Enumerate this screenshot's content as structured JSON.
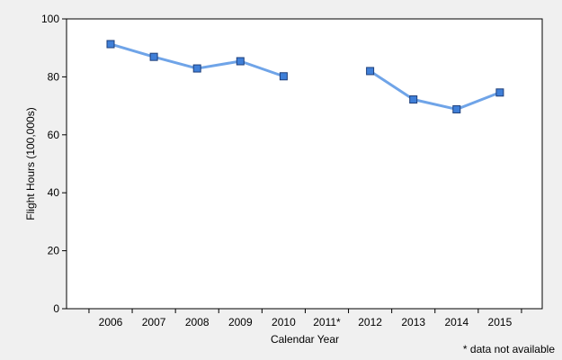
{
  "chart_data": {
    "type": "line",
    "title": "",
    "xlabel": "Calendar Year",
    "ylabel": "Flight Hours (100,000s)",
    "categories": [
      "2006",
      "2007",
      "2008",
      "2009",
      "2010",
      "2011*",
      "2012",
      "2013",
      "2014",
      "2015"
    ],
    "series": [
      {
        "values": [
          91.3,
          86.9,
          82.9,
          85.4,
          80.2,
          null,
          82.0,
          72.2,
          68.8,
          74.6
        ],
        "color": "#6fa4e8",
        "marker_fill": "#3f7fd8",
        "marker_stroke": "#1f3f7a"
      }
    ],
    "ylim": [
      0,
      100
    ],
    "yticks": [
      0,
      20,
      40,
      60,
      80,
      100
    ],
    "grid": false,
    "legend": "none",
    "footnote": "* data not available"
  },
  "colors": {
    "background": "#f0f0f0",
    "plot_background": "#ffffff",
    "axis": "#000000"
  }
}
